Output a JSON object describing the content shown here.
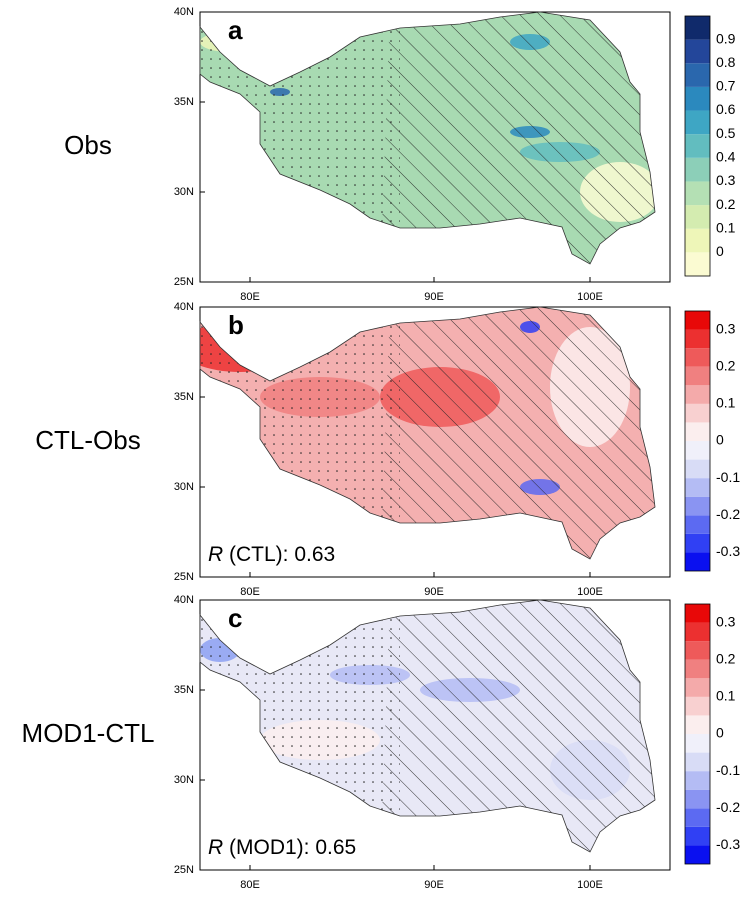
{
  "panels": [
    {
      "letter": "a",
      "label": "Obs",
      "colorbar": {
        "labels": [
          "0",
          "0.1",
          "0.2",
          "0.3",
          "0.4",
          "0.5",
          "0.6",
          "0.7",
          "0.8",
          "0.9"
        ]
      }
    },
    {
      "letter": "b",
      "label": "CTL-Obs",
      "annotation": {
        "italic": "R",
        "text": " (CTL): 0.63"
      },
      "colorbar": {
        "labels": [
          "-0.3",
          "-0.2",
          "-0.1",
          "0",
          "0.1",
          "0.2",
          "0.3"
        ]
      }
    },
    {
      "letter": "c",
      "label": "MOD1-CTL",
      "annotation": {
        "italic": "R",
        "text": " (MOD1): 0.65"
      },
      "colorbar": {
        "labels": [
          "-0.3",
          "-0.2",
          "-0.1",
          "0",
          "0.1",
          "0.2",
          "0.3"
        ]
      }
    }
  ],
  "axes": {
    "xticks": [
      "80E",
      "90E",
      "100E"
    ],
    "yticks": [
      "40N",
      "35N",
      "30N",
      "25N"
    ]
  }
}
